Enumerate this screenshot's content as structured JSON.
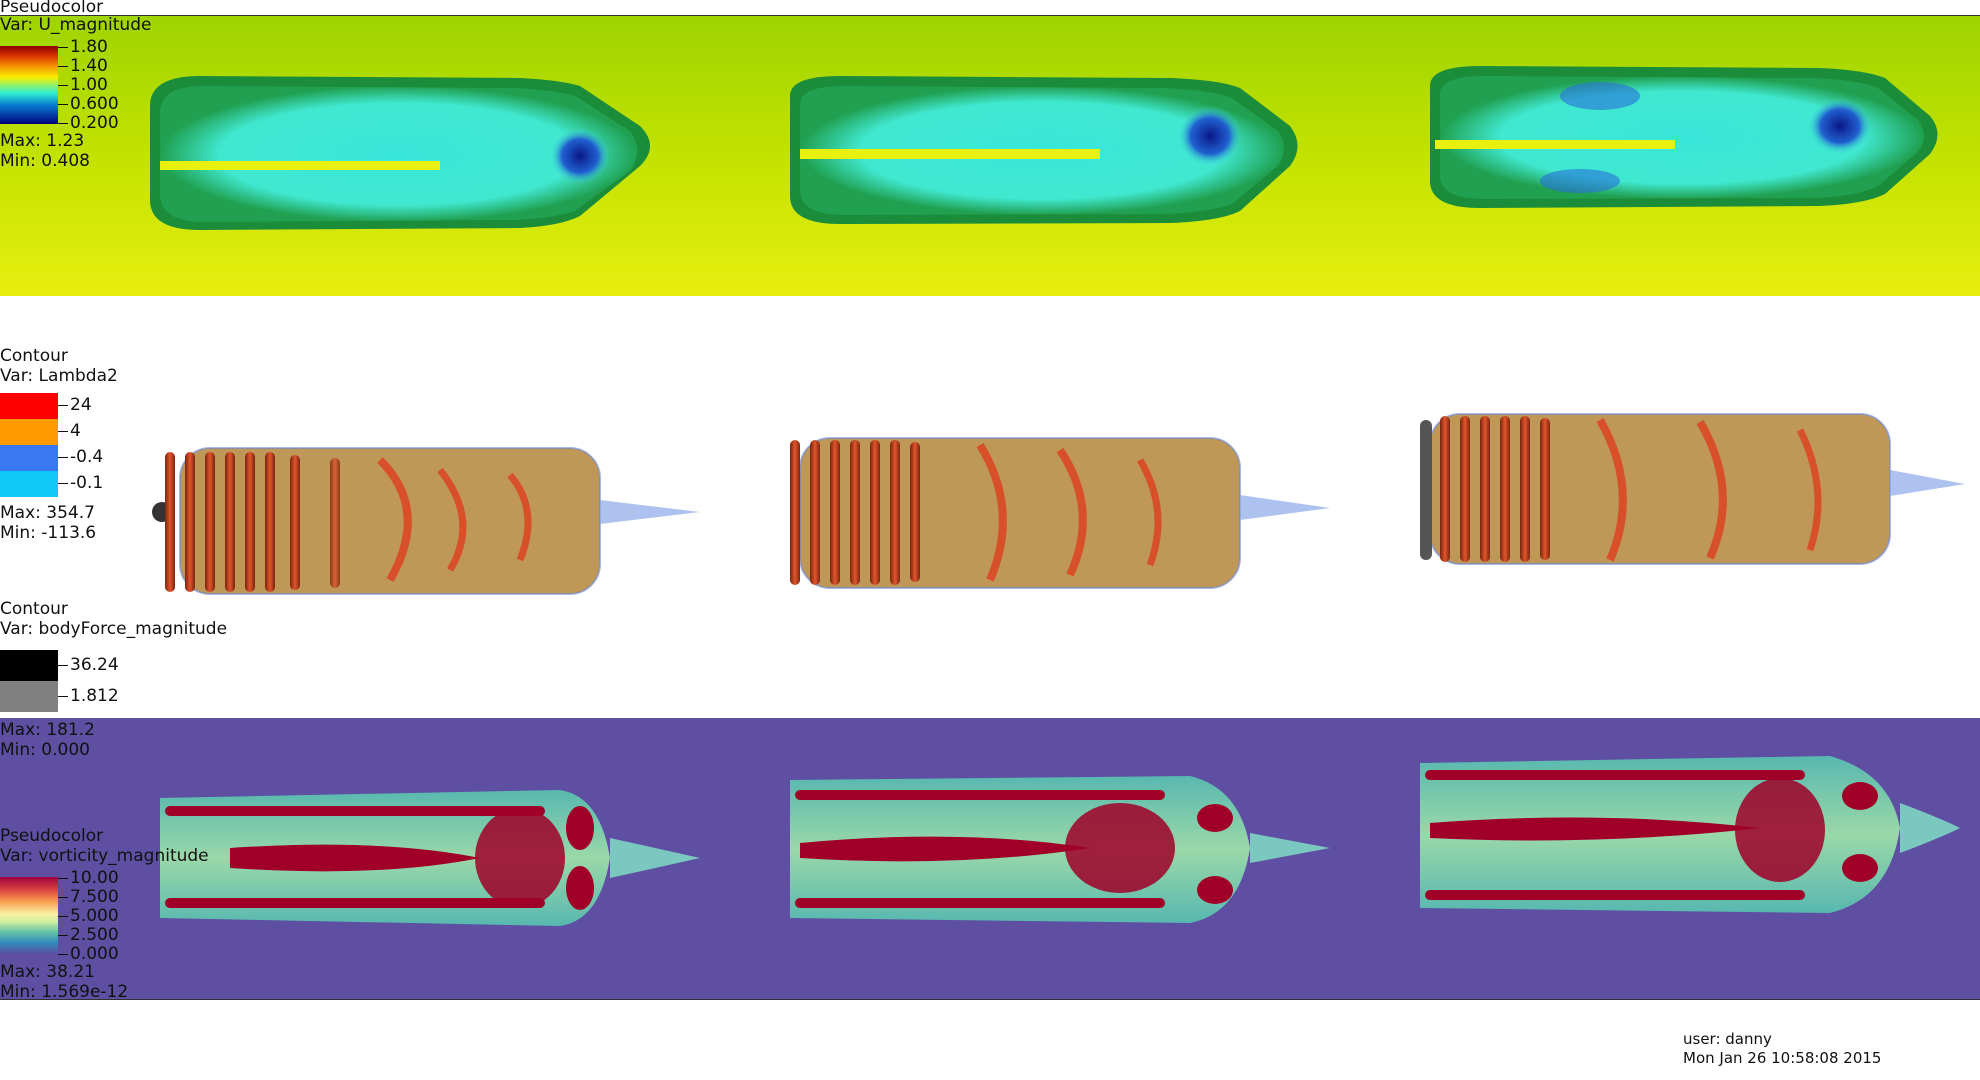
{
  "plots": [
    {
      "id": "pseudocolor-u",
      "plot_type": "Pseudocolor",
      "var_label": "Var: U_magnitude",
      "ticks": [
        "1.80",
        "1.40",
        "1.00",
        "0.600",
        "0.200"
      ],
      "max_label": "Max:  1.23",
      "min_label": "Min:  0.408",
      "colors": {
        "high": "#b00000",
        "mid": "#f3e000",
        "low": "#000080",
        "background": "#b4e000",
        "wake": "#30e8d8"
      }
    },
    {
      "id": "contour-lambda2",
      "plot_type": "Contour",
      "var_label": "Var: Lambda2",
      "levels": [
        "24",
        "4",
        "-0.4",
        "-0.1"
      ],
      "level_colors": [
        "#ff0000",
        "#ff9a00",
        "#3a78f2",
        "#10c8f8"
      ],
      "max_label": "Max:  354.7",
      "min_label": "Min: -113.6"
    },
    {
      "id": "contour-bodyforce",
      "plot_type": "Contour",
      "var_label": "Var: bodyForce_magnitude",
      "levels": [
        "36.24",
        "1.812"
      ],
      "level_colors": [
        "#000000",
        "#808080"
      ],
      "max_label": "Max:  181.2",
      "min_label": "Min:  0.000"
    },
    {
      "id": "pseudocolor-vorticity",
      "plot_type": "Pseudocolor",
      "var_label": "Var: vorticity_magnitude",
      "ticks": [
        "10.00",
        "7.500",
        "5.000",
        "2.500",
        "0.000"
      ],
      "max_label": "Max:  38.21",
      "min_label": "Min:  1.569e-12",
      "colors": {
        "high": "#a00028",
        "mid": "#f8f8b8",
        "low": "#5e4fa2",
        "background": "#5e4fa2"
      }
    }
  ],
  "footer": {
    "user": "user: danny",
    "timestamp": "Mon Jan 26 10:58:08 2015"
  }
}
